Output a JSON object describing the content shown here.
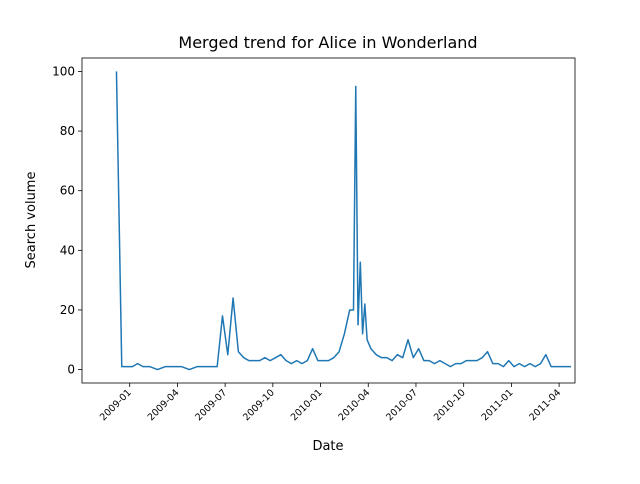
{
  "chart_data": {
    "type": "line",
    "title": "Merged trend for Alice in Wonderland",
    "x_label": "Date",
    "y_label": "Search volume",
    "x": [
      "2008-12",
      "2008-12",
      "2008-12",
      "2009-01",
      "2009-01",
      "2009-01",
      "2009-02",
      "2009-02",
      "2009-03",
      "2009-03",
      "2009-04",
      "2009-04",
      "2009-05",
      "2009-05",
      "2009-06",
      "2009-06",
      "2009-06",
      "2009-07",
      "2009-07",
      "2009-07",
      "2009-08",
      "2009-08",
      "2009-08",
      "2009-09",
      "2009-09",
      "2009-09",
      "2009-10",
      "2009-10",
      "2009-10",
      "2009-11",
      "2009-11",
      "2009-11",
      "2009-12",
      "2009-12",
      "2009-12",
      "2010-01",
      "2010-01",
      "2010-01",
      "2010-02",
      "2010-02",
      "2010-02",
      "2010-03",
      "2010-03",
      "2010-03",
      "2010-03",
      "2010-03",
      "2010-03",
      "2010-03",
      "2010-04",
      "2010-04",
      "2010-04",
      "2010-05",
      "2010-05",
      "2010-05",
      "2010-06",
      "2010-06",
      "2010-06",
      "2010-07",
      "2010-07",
      "2010-07",
      "2010-08",
      "2010-08",
      "2010-08",
      "2010-09",
      "2010-09",
      "2010-09",
      "2010-10",
      "2010-10",
      "2010-10",
      "2010-11",
      "2010-11",
      "2010-11",
      "2010-12",
      "2010-12",
      "2010-12",
      "2011-01",
      "2011-01",
      "2011-01",
      "2011-02",
      "2011-02",
      "2011-02",
      "2011-03",
      "2011-03",
      "2011-03",
      "2011-04",
      "2011-04"
    ],
    "series": [
      {
        "name": "Search volume",
        "color": "#1f77b4",
        "values": [
          100,
          1,
          1,
          1,
          2,
          1,
          1,
          0,
          1,
          1,
          1,
          0,
          1,
          1,
          1,
          1,
          18,
          5,
          24,
          6,
          4,
          3,
          3,
          3,
          4,
          3,
          4,
          5,
          3,
          2,
          3,
          2,
          3,
          7,
          3,
          3,
          3,
          4,
          6,
          12,
          20,
          20,
          95,
          15,
          36,
          12,
          22,
          10,
          7,
          5,
          4,
          4,
          3,
          5,
          4,
          10,
          4,
          7,
          3,
          3,
          2,
          3,
          2,
          1,
          2,
          2,
          3,
          3,
          3,
          4,
          6,
          2,
          2,
          1,
          3,
          1,
          2,
          1,
          2,
          1,
          2,
          5,
          1,
          1,
          1,
          1
        ]
      }
    ],
    "xlim": [
      "2008-10",
      "2011-05"
    ],
    "xticks": [
      "2009-01",
      "2009-04",
      "2009-07",
      "2009-10",
      "2010-01",
      "2010-04",
      "2010-07",
      "2010-10",
      "2011-01",
      "2011-04"
    ],
    "ylim": [
      -4.5,
      104.5
    ],
    "yticks": [
      0,
      20,
      40,
      60,
      80,
      100
    ]
  }
}
